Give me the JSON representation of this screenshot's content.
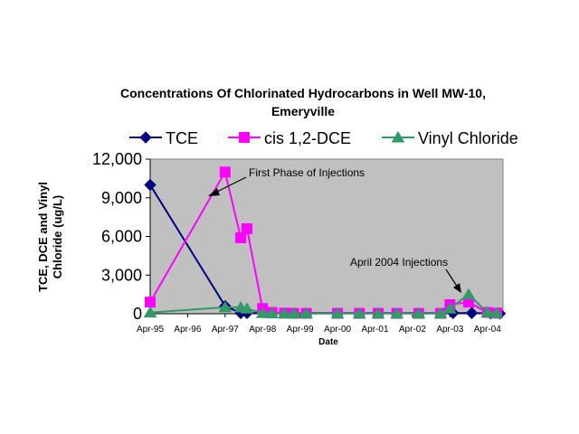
{
  "chart_data": {
    "type": "line",
    "title_line1": "Concentrations Of Chlorinated Hydrocarbons in Well MW-10,",
    "title_line2": "Emeryville",
    "xlabel": "Date",
    "ylabel_line1": "TCE, DCE and Vinyl",
    "ylabel_line2": "Chloride (ug/L)",
    "ylim": [
      0,
      12000
    ],
    "yticks": [
      0,
      3000,
      6000,
      9000,
      12000
    ],
    "ytick_labels": [
      "0",
      "3,000",
      "6,000",
      "9,000",
      "12,000"
    ],
    "xlim": [
      "1995-04",
      "2004-09"
    ],
    "xtick_labels": [
      "Apr-95",
      "Apr-96",
      "Apr-97",
      "Apr-98",
      "Apr-99",
      "Apr-00",
      "Apr-01",
      "Apr-02",
      "Apr-03",
      "Apr-04"
    ],
    "xtick_dates": [
      "1995-04",
      "1996-04",
      "1997-04",
      "1998-04",
      "1999-04",
      "2000-04",
      "2001-04",
      "2002-04",
      "2003-04",
      "2004-04"
    ],
    "grid": false,
    "legend_placement": "top",
    "colors": {
      "plot_bg": "#c0c0c0",
      "TCE": "#000080",
      "cis 1,2-DCE": "#ff00ff",
      "Vinyl Chloride": "#339966"
    },
    "series": [
      {
        "name": "TCE",
        "marker": "diamond",
        "points": [
          [
            "1995-04",
            10000
          ],
          [
            "1997-04",
            600
          ],
          [
            "1997-09",
            50
          ],
          [
            "1997-11",
            50
          ],
          [
            "2003-05",
            50
          ],
          [
            "2003-11",
            50
          ],
          [
            "2004-05",
            30
          ],
          [
            "2004-08",
            20
          ]
        ]
      },
      {
        "name": "cis 1,2-DCE",
        "marker": "square",
        "points": [
          [
            "1995-04",
            900
          ],
          [
            "1997-04",
            11000
          ],
          [
            "1997-09",
            5900
          ],
          [
            "1997-11",
            6600
          ],
          [
            "1998-04",
            400
          ],
          [
            "1998-07",
            100
          ],
          [
            "1998-11",
            50
          ],
          [
            "1999-02",
            30
          ],
          [
            "1999-06",
            30
          ],
          [
            "2000-04",
            30
          ],
          [
            "2000-11",
            30
          ],
          [
            "2001-05",
            30
          ],
          [
            "2001-11",
            30
          ],
          [
            "2002-06",
            30
          ],
          [
            "2003-01",
            30
          ],
          [
            "2003-04",
            700
          ],
          [
            "2003-10",
            900
          ],
          [
            "2004-04",
            100
          ],
          [
            "2004-07",
            50
          ]
        ]
      },
      {
        "name": "Vinyl Chloride",
        "marker": "triangle",
        "points": [
          [
            "1995-04",
            100
          ],
          [
            "1997-04",
            500
          ],
          [
            "1997-09",
            500
          ],
          [
            "1997-11",
            400
          ],
          [
            "1998-04",
            50
          ],
          [
            "1998-07",
            30
          ],
          [
            "1998-11",
            20
          ],
          [
            "1999-02",
            20
          ],
          [
            "1999-06",
            20
          ],
          [
            "2000-04",
            20
          ],
          [
            "2000-11",
            20
          ],
          [
            "2001-05",
            20
          ],
          [
            "2001-11",
            20
          ],
          [
            "2002-06",
            20
          ],
          [
            "2003-01",
            20
          ],
          [
            "2003-04",
            400
          ],
          [
            "2003-10",
            1500
          ],
          [
            "2004-04",
            100
          ],
          [
            "2004-07",
            50
          ]
        ]
      }
    ],
    "annotations": [
      {
        "text": "First Phase of Injections",
        "date": "1997-03",
        "value": 9000
      },
      {
        "text": "April 2004 Injections",
        "date": "2003-11",
        "value": 700
      }
    ]
  }
}
